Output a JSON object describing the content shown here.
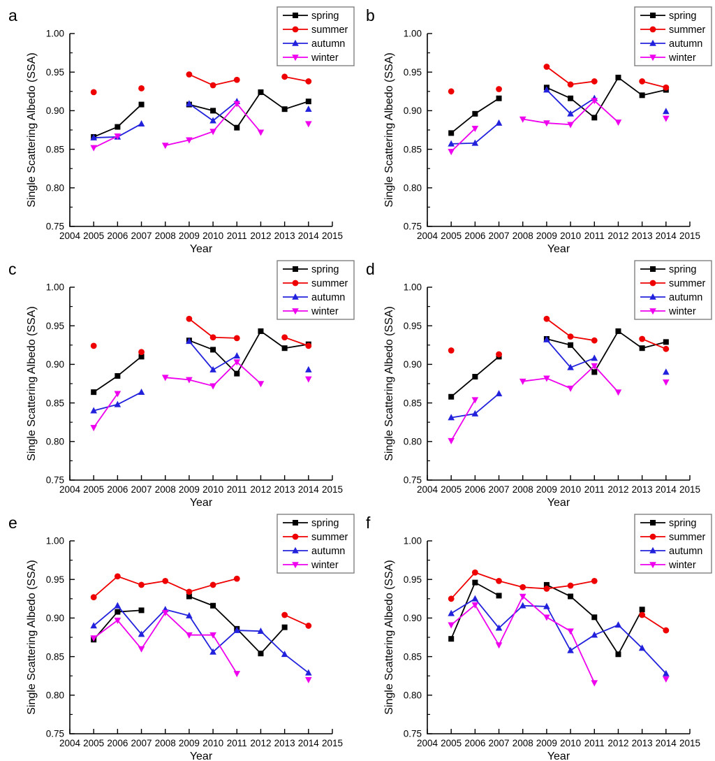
{
  "figure": {
    "background": "#ffffff",
    "axis_color": "#000000",
    "legend_border_color": "#7f7f7f",
    "xlabel": "Year",
    "ylabel": "Single Scattering Albedo (SSA)",
    "legend_labels": [
      "spring",
      "summer",
      "autumn",
      "winter"
    ],
    "series_colors": {
      "spring": "#000000",
      "summer": "#ee0000",
      "autumn": "#2222dd",
      "winter": "#ee00ee"
    }
  },
  "chart_data": [
    {
      "type": "line",
      "panel_label": "a",
      "title": "",
      "xlabel": "Year",
      "ylabel": "Single Scattering Albedo (SSA)",
      "xlim": [
        2004,
        2015
      ],
      "ylim": [
        0.75,
        1.0
      ],
      "xticks": [
        2004,
        2005,
        2006,
        2007,
        2008,
        2009,
        2010,
        2011,
        2012,
        2013,
        2014,
        2015
      ],
      "yticks": [
        0.75,
        0.8,
        0.85,
        0.9,
        0.95,
        1.0
      ],
      "y_minor_step": 0.025,
      "legend_position": "top-right",
      "x": [
        2005,
        2006,
        2007,
        2008,
        2009,
        2010,
        2011,
        2012,
        2013,
        2014
      ],
      "series": [
        {
          "name": "spring",
          "color": "#000000",
          "marker": "square",
          "values": [
            0.866,
            0.879,
            0.908,
            null,
            0.908,
            0.9,
            0.878,
            0.924,
            0.902,
            0.912
          ]
        },
        {
          "name": "summer",
          "color": "#ee0000",
          "marker": "circle",
          "values": [
            0.924,
            null,
            0.929,
            null,
            0.947,
            0.933,
            0.94,
            null,
            0.944,
            0.938
          ]
        },
        {
          "name": "autumn",
          "color": "#2222dd",
          "marker": "triangle-up",
          "values": [
            0.865,
            0.866,
            0.883,
            null,
            0.909,
            0.887,
            0.912,
            null,
            null,
            0.902
          ]
        },
        {
          "name": "winter",
          "color": "#ee00ee",
          "marker": "triangle-down",
          "values": [
            0.852,
            0.867,
            null,
            0.855,
            0.862,
            0.873,
            0.909,
            0.872,
            null,
            0.883
          ]
        }
      ]
    },
    {
      "type": "line",
      "panel_label": "b",
      "title": "",
      "xlabel": "Year",
      "ylabel": "Single Scattering Albedo (SSA)",
      "xlim": [
        2004,
        2015
      ],
      "ylim": [
        0.75,
        1.0
      ],
      "xticks": [
        2004,
        2005,
        2006,
        2007,
        2008,
        2009,
        2010,
        2011,
        2012,
        2013,
        2014,
        2015
      ],
      "yticks": [
        0.75,
        0.8,
        0.85,
        0.9,
        0.95,
        1.0
      ],
      "y_minor_step": 0.025,
      "legend_position": "top-right",
      "x": [
        2005,
        2006,
        2007,
        2008,
        2009,
        2010,
        2011,
        2012,
        2013,
        2014
      ],
      "series": [
        {
          "name": "spring",
          "color": "#000000",
          "marker": "square",
          "values": [
            0.871,
            0.896,
            0.916,
            null,
            0.93,
            0.916,
            0.891,
            0.943,
            0.92,
            0.927
          ]
        },
        {
          "name": "summer",
          "color": "#ee0000",
          "marker": "circle",
          "values": [
            0.925,
            null,
            0.928,
            null,
            0.957,
            0.934,
            0.938,
            null,
            0.938,
            0.93
          ]
        },
        {
          "name": "autumn",
          "color": "#2222dd",
          "marker": "triangle-up",
          "values": [
            0.857,
            0.858,
            0.884,
            null,
            0.927,
            0.896,
            0.916,
            null,
            null,
            0.899
          ]
        },
        {
          "name": "winter",
          "color": "#ee00ee",
          "marker": "triangle-down",
          "values": [
            0.847,
            0.877,
            null,
            0.889,
            0.884,
            0.882,
            0.913,
            0.885,
            null,
            0.89
          ]
        }
      ]
    },
    {
      "type": "line",
      "panel_label": "c",
      "title": "",
      "xlabel": "Year",
      "ylabel": "Single Scattering Albedo (SSA)",
      "xlim": [
        2004,
        2015
      ],
      "ylim": [
        0.75,
        1.0
      ],
      "xticks": [
        2004,
        2005,
        2006,
        2007,
        2008,
        2009,
        2010,
        2011,
        2012,
        2013,
        2014,
        2015
      ],
      "yticks": [
        0.75,
        0.8,
        0.85,
        0.9,
        0.95,
        1.0
      ],
      "y_minor_step": 0.025,
      "legend_position": "top-right",
      "x": [
        2005,
        2006,
        2007,
        2008,
        2009,
        2010,
        2011,
        2012,
        2013,
        2014
      ],
      "series": [
        {
          "name": "spring",
          "color": "#000000",
          "marker": "square",
          "values": [
            0.864,
            0.885,
            0.91,
            null,
            0.931,
            0.919,
            0.888,
            0.943,
            0.921,
            0.926
          ]
        },
        {
          "name": "summer",
          "color": "#ee0000",
          "marker": "circle",
          "values": [
            0.924,
            null,
            0.916,
            null,
            0.959,
            0.935,
            0.934,
            null,
            0.935,
            0.924
          ]
        },
        {
          "name": "autumn",
          "color": "#2222dd",
          "marker": "triangle-up",
          "values": [
            0.84,
            0.848,
            0.864,
            null,
            0.93,
            0.893,
            0.911,
            null,
            null,
            0.893
          ]
        },
        {
          "name": "winter",
          "color": "#ee00ee",
          "marker": "triangle-down",
          "values": [
            0.818,
            0.862,
            null,
            0.883,
            0.88,
            0.872,
            0.903,
            0.875,
            null,
            0.881
          ]
        }
      ]
    },
    {
      "type": "line",
      "panel_label": "d",
      "title": "",
      "xlabel": "Year",
      "ylabel": "Single Scattering Albedo (SSA)",
      "xlim": [
        2004,
        2015
      ],
      "ylim": [
        0.75,
        1.0
      ],
      "xticks": [
        2004,
        2005,
        2006,
        2007,
        2008,
        2009,
        2010,
        2011,
        2012,
        2013,
        2014,
        2015
      ],
      "yticks": [
        0.75,
        0.8,
        0.85,
        0.9,
        0.95,
        1.0
      ],
      "y_minor_step": 0.025,
      "legend_position": "top-right",
      "x": [
        2005,
        2006,
        2007,
        2008,
        2009,
        2010,
        2011,
        2012,
        2013,
        2014
      ],
      "series": [
        {
          "name": "spring",
          "color": "#000000",
          "marker": "square",
          "values": [
            0.858,
            0.884,
            0.91,
            null,
            0.933,
            0.925,
            0.89,
            0.943,
            0.921,
            0.929
          ]
        },
        {
          "name": "summer",
          "color": "#ee0000",
          "marker": "circle",
          "values": [
            0.918,
            null,
            0.913,
            null,
            0.959,
            0.936,
            0.931,
            null,
            0.933,
            0.92
          ]
        },
        {
          "name": "autumn",
          "color": "#2222dd",
          "marker": "triangle-up",
          "values": [
            0.831,
            0.836,
            0.862,
            null,
            0.932,
            0.896,
            0.908,
            null,
            null,
            0.89
          ]
        },
        {
          "name": "winter",
          "color": "#ee00ee",
          "marker": "triangle-down",
          "values": [
            0.801,
            0.854,
            null,
            0.878,
            0.882,
            0.869,
            0.898,
            0.864,
            null,
            0.877
          ]
        }
      ]
    },
    {
      "type": "line",
      "panel_label": "e",
      "title": "",
      "xlabel": "Year",
      "ylabel": "Single Scattering Albedo (SSA)",
      "xlim": [
        2004,
        2015
      ],
      "ylim": [
        0.75,
        1.0
      ],
      "xticks": [
        2004,
        2005,
        2006,
        2007,
        2008,
        2009,
        2010,
        2011,
        2012,
        2013,
        2014,
        2015
      ],
      "yticks": [
        0.75,
        0.8,
        0.85,
        0.9,
        0.95,
        1.0
      ],
      "y_minor_step": 0.025,
      "legend_position": "top-right",
      "x": [
        2005,
        2006,
        2007,
        2008,
        2009,
        2010,
        2011,
        2012,
        2013,
        2014
      ],
      "series": [
        {
          "name": "spring",
          "color": "#000000",
          "marker": "square",
          "values": [
            0.872,
            0.908,
            0.91,
            null,
            0.928,
            0.916,
            0.886,
            0.854,
            0.888,
            null
          ]
        },
        {
          "name": "summer",
          "color": "#ee0000",
          "marker": "circle",
          "values": [
            0.927,
            0.954,
            0.943,
            0.948,
            0.934,
            0.943,
            0.951,
            null,
            0.904,
            0.89
          ]
        },
        {
          "name": "autumn",
          "color": "#2222dd",
          "marker": "triangle-up",
          "values": [
            0.89,
            0.916,
            0.879,
            0.911,
            0.903,
            0.856,
            0.884,
            0.883,
            0.853,
            0.829
          ]
        },
        {
          "name": "winter",
          "color": "#ee00ee",
          "marker": "triangle-down",
          "values": [
            0.874,
            0.897,
            0.86,
            0.907,
            0.878,
            0.878,
            0.828,
            null,
            null,
            0.82
          ]
        }
      ]
    },
    {
      "type": "line",
      "panel_label": "f",
      "title": "",
      "xlabel": "Year",
      "ylabel": "Single Scattering Albedo (SSA)",
      "xlim": [
        2004,
        2015
      ],
      "ylim": [
        0.75,
        1.0
      ],
      "xticks": [
        2004,
        2005,
        2006,
        2007,
        2008,
        2009,
        2010,
        2011,
        2012,
        2013,
        2014,
        2015
      ],
      "yticks": [
        0.75,
        0.8,
        0.85,
        0.9,
        0.95,
        1.0
      ],
      "y_minor_step": 0.025,
      "legend_position": "top-right",
      "x": [
        2005,
        2006,
        2007,
        2008,
        2009,
        2010,
        2011,
        2012,
        2013,
        2014
      ],
      "series": [
        {
          "name": "spring",
          "color": "#000000",
          "marker": "square",
          "values": [
            0.873,
            0.946,
            0.929,
            null,
            0.943,
            0.928,
            0.901,
            0.853,
            0.911,
            null
          ]
        },
        {
          "name": "summer",
          "color": "#ee0000",
          "marker": "circle",
          "values": [
            0.925,
            0.959,
            0.948,
            0.94,
            0.938,
            0.942,
            0.948,
            null,
            0.904,
            0.884
          ]
        },
        {
          "name": "autumn",
          "color": "#2222dd",
          "marker": "triangle-up",
          "values": [
            0.906,
            0.925,
            0.887,
            0.916,
            0.915,
            0.858,
            0.878,
            0.891,
            0.861,
            0.828
          ]
        },
        {
          "name": "winter",
          "color": "#ee00ee",
          "marker": "triangle-down",
          "values": [
            0.891,
            0.917,
            0.865,
            0.928,
            0.901,
            0.883,
            0.816,
            null,
            null,
            0.821
          ]
        }
      ]
    }
  ]
}
